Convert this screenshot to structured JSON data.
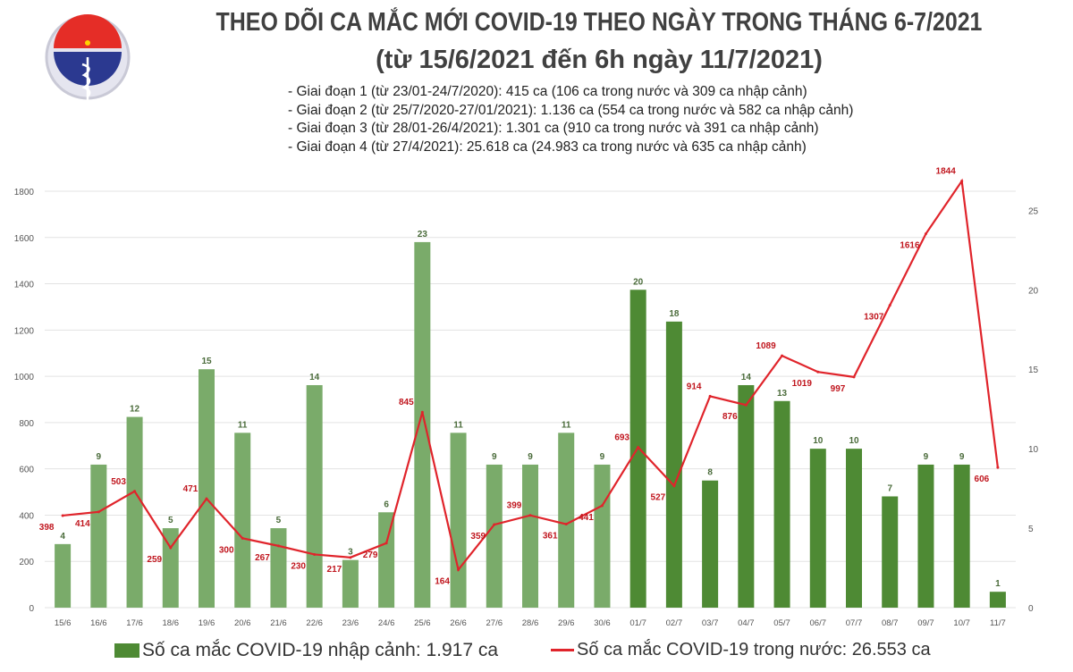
{
  "header": {
    "title_line1": "THEO DÕI CA MẮC MỚI COVID-19 THEO NGÀY TRONG THÁNG 6-7/2021",
    "title_line2": "(từ 15/6/2021 đến 6h ngày 11/7/2021)",
    "notes": [
      "- Giai đoạn 1 (từ 23/01-24/7/2020): 415 ca (106 ca trong nước và 309 ca nhập cảnh)",
      "- Giai đoạn 2 (từ 25/7/2020-27/01/2021): 1.136 ca (554 ca trong nước và 582 ca nhập cảnh)",
      "- Giai đoạn 3 (từ 28/01-26/4/2021): 1.301 ca (910 ca trong nước và 391 ca nhập cảnh)",
      "- Giai đoạn 4 (từ 27/4/2021): 25.618 ca (24.983 ca trong nước và 635 ca nhập cảnh)"
    ]
  },
  "logo": {
    "text_top": "BỘ Y TẾ",
    "text_bottom": "MINISTRY OF HEALTH"
  },
  "chart_data": {
    "type": "bar+line",
    "categories": [
      "15/6",
      "16/6",
      "17/6",
      "18/6",
      "19/6",
      "20/6",
      "21/6",
      "22/6",
      "23/6",
      "24/6",
      "25/6",
      "26/6",
      "27/6",
      "28/6",
      "29/6",
      "30/6",
      "01/7",
      "02/7",
      "03/7",
      "04/7",
      "05/7",
      "06/7",
      "07/7",
      "08/7",
      "09/7",
      "10/7",
      "11/7"
    ],
    "series": [
      {
        "name": "Số ca mắc COVID-19 nhập cảnh: 1.917 ca",
        "type": "bar",
        "axis": "right",
        "values": [
          4,
          9,
          12,
          5,
          15,
          11,
          5,
          14,
          3,
          6,
          23,
          11,
          9,
          9,
          11,
          9,
          20,
          18,
          8,
          14,
          13,
          10,
          10,
          7,
          9,
          9,
          1
        ],
        "colors": {
          "june": "#7aab6a",
          "july": "#4e8a34"
        }
      },
      {
        "name": "Số ca mắc COVID-19 trong nước: 26.553 ca",
        "type": "line",
        "axis": "left",
        "values": [
          398,
          414,
          503,
          259,
          471,
          300,
          267,
          230,
          217,
          279,
          845,
          164,
          359,
          399,
          361,
          441,
          693,
          527,
          914,
          876,
          1089,
          1019,
          997,
          1307,
          1616,
          1844,
          606
        ],
        "color": "#e0242b",
        "label_color": "#c0161e"
      }
    ],
    "left_axis": {
      "range": [
        0,
        1800
      ],
      "ticks": [
        0,
        200,
        400,
        600,
        800,
        1000,
        1200,
        1400,
        1600,
        1800
      ]
    },
    "right_axis": {
      "range": [
        0,
        26.2
      ],
      "ticks": [
        0,
        5,
        10,
        15,
        20,
        25
      ]
    },
    "grid": true,
    "legend_placement": "bottom"
  }
}
